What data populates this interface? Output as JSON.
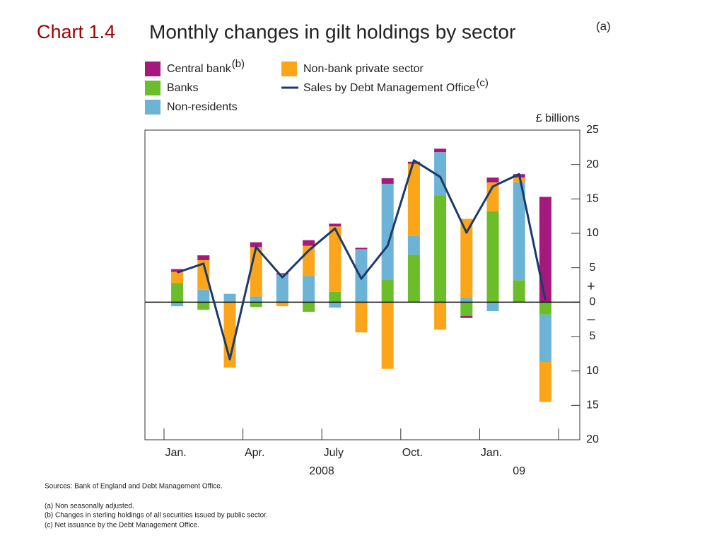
{
  "chart_data": {
    "type": "bar",
    "stacked": true,
    "chart_label": "Chart 1.4",
    "title": "Monthly changes in gilt holdings by sector",
    "title_note": "(a)",
    "y_unit_label": "£ billions",
    "sign_labels": [
      "+",
      "–"
    ],
    "categories": [
      "Jan.",
      null,
      null,
      "Apr.",
      null,
      null,
      "July",
      null,
      null,
      "Oct.",
      null,
      null,
      "Jan.",
      null,
      null
    ],
    "x_group_labels": [
      "2008",
      "09"
    ],
    "series": [
      {
        "name": "Banks",
        "color": "#6cbd2a",
        "values": [
          2.8,
          -1.1,
          0,
          -0.7,
          0,
          -1.4,
          1.5,
          0,
          3.3,
          6.9,
          15.5,
          -2.0,
          13.2,
          3.2,
          -1.8
        ]
      },
      {
        "name": "Non-residents",
        "color": "#6db3d6",
        "values": [
          -0.6,
          1.8,
          1.2,
          0.8,
          4.0,
          3.8,
          -0.8,
          7.7,
          13.9,
          2.7,
          6.3,
          0.6,
          -1.3,
          14.2,
          -6.9
        ]
      },
      {
        "name": "Non-bank private sector",
        "color": "#fba51a",
        "values": [
          1.6,
          4.3,
          -9.5,
          7.2,
          -0.6,
          4.4,
          9.5,
          -4.4,
          -9.7,
          10.5,
          -4.0,
          11.5,
          4.2,
          0.7,
          -5.8
        ]
      },
      {
        "name": "Central bank",
        "name_note": "(b)",
        "color": "#a5197d",
        "values": [
          0.4,
          0.7,
          0,
          0.7,
          0.2,
          0.8,
          0.4,
          0.2,
          0.8,
          0.3,
          0.5,
          -0.3,
          0.7,
          0.5,
          15.3
        ]
      },
      {
        "name": "Sales by Debt Management Office",
        "name_note": "(c)",
        "type": "line",
        "color": "#1b3a6b",
        "values": [
          4.3,
          5.6,
          -8.3,
          8.0,
          3.6,
          7.5,
          10.7,
          3.4,
          8.2,
          20.6,
          18.2,
          10.1,
          16.8,
          18.6,
          0.3
        ]
      }
    ],
    "ylim": [
      -20,
      25
    ],
    "yticks": [
      {
        "value": -20,
        "label": "20"
      },
      {
        "value": -15,
        "label": "15"
      },
      {
        "value": -10,
        "label": "10"
      },
      {
        "value": -5,
        "label": "5"
      },
      0,
      5,
      10,
      15,
      20,
      25
    ],
    "footnotes": [
      "Sources:  Bank of England and Debt Management Office.",
      "(a)  Non seasonally adjusted.",
      "(b)  Changes in sterling holdings of all securities issued by public sector.",
      "(c)  Net issuance by the Debt Management Office."
    ]
  }
}
